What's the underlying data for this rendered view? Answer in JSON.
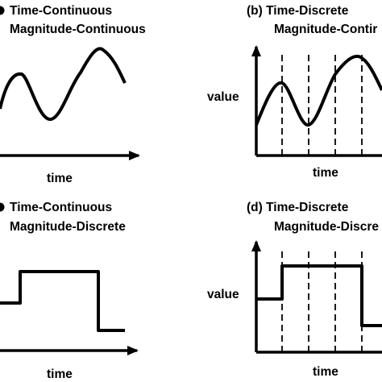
{
  "panels": {
    "a": {
      "title_line1": "Time-Continuous",
      "title_line2": "Magnitude-Continuous",
      "xlabel": "time"
    },
    "b": {
      "title_line1": "(b) Time-Discrete",
      "title_line2": "Magnitude-Contir",
      "xlabel": "time",
      "ylabel": "value"
    },
    "c": {
      "title_line1": "Time-Continuous",
      "title_line2": "Magnitude-Discrete",
      "xlabel": "time"
    },
    "d": {
      "title_line1": "(d) Time-Discrete",
      "title_line2": "Magnitude-Discre",
      "xlabel": "time",
      "ylabel": "value"
    }
  }
}
